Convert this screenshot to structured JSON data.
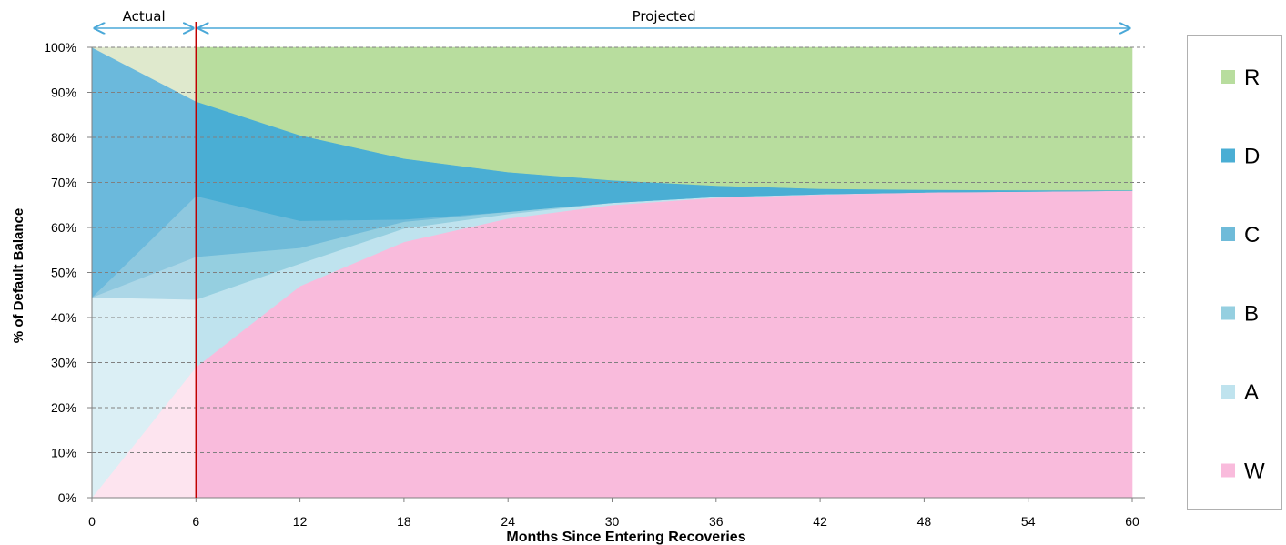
{
  "chart_data": {
    "type": "area",
    "stacked": true,
    "xlabel": "Months Since Entering Recoveries",
    "ylabel": "% of Default Balance",
    "xlim": [
      0,
      60
    ],
    "ylim": [
      0,
      100
    ],
    "x_ticks": [
      "0",
      "6",
      "12",
      "18",
      "24",
      "30",
      "36",
      "42",
      "48",
      "54",
      "60"
    ],
    "y_ticks": [
      "0%",
      "10%",
      "20%",
      "30%",
      "40%",
      "50%",
      "60%",
      "70%",
      "80%",
      "90%",
      "100%"
    ],
    "grid": "horizontal dashed",
    "legend_position": "right",
    "phases": [
      {
        "label": "Actual",
        "from": 0,
        "to": 6
      },
      {
        "label": "Projected",
        "from": 6,
        "to": 60
      }
    ],
    "divider_x": 6,
    "x": [
      0,
      6,
      12,
      18,
      24,
      30,
      36,
      42,
      48,
      54,
      60
    ],
    "series": [
      {
        "name": "W",
        "color": "#f9bbdc",
        "actual_color": "#fde4ef",
        "values": [
          0,
          29,
          47,
          56.8,
          62,
          65,
          66.6,
          67.3,
          67.8,
          68.0,
          68.2
        ]
      },
      {
        "name": "A",
        "color": "#bfe3ee",
        "actual_color": "#dbeff5",
        "values": [
          44.5,
          15,
          5,
          3,
          1,
          0.5,
          0.2,
          0.1,
          0,
          0,
          0
        ]
      },
      {
        "name": "B",
        "color": "#95cfe0",
        "actual_color": "#acd7e7",
        "values": [
          0,
          9.5,
          3.5,
          1.5,
          0.5,
          0,
          0,
          0,
          0,
          0,
          0
        ]
      },
      {
        "name": "C",
        "color": "#6fbbd9",
        "actual_color": "#8ec8df",
        "values": [
          0,
          13.5,
          6,
          0.5,
          0,
          0,
          0,
          0,
          0,
          0,
          0
        ]
      },
      {
        "name": "D",
        "color": "#4aaed4",
        "actual_color": "#6bb9dc",
        "values": [
          55.5,
          21,
          19,
          13.5,
          8.8,
          5,
          2.5,
          1.2,
          0.6,
          0.3,
          0.1
        ]
      },
      {
        "name": "R",
        "color": "#b8dd9e",
        "actual_color": "#dfe9cd",
        "values": [
          0,
          12,
          19.5,
          24.7,
          27.7,
          29.5,
          30.7,
          31.4,
          31.6,
          31.7,
          31.7
        ]
      }
    ],
    "legend_order": [
      "R",
      "D",
      "C",
      "B",
      "A",
      "W"
    ],
    "colors": {
      "divider": "#c00000",
      "arrow": "#4aa8d8",
      "grid": "#808080"
    }
  }
}
